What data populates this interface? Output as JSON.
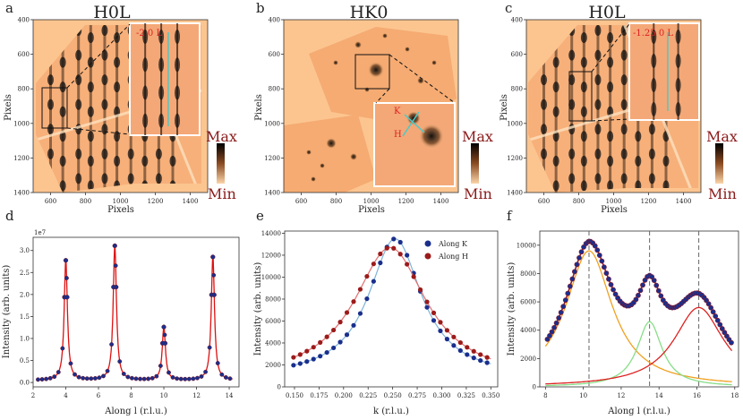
{
  "chart_data": [
    {
      "panel": "a",
      "type": "heatmap",
      "title": "H0L",
      "xlabel": "Pixels",
      "ylabel": "Pixels",
      "xticks": [
        "600",
        "800",
        "1000",
        "1200",
        "1400"
      ],
      "yticks": [
        "400",
        "600",
        "800",
        "1000",
        "1200",
        "1400"
      ],
      "inset_label": "-2 0 L",
      "colorbar": {
        "max_label": "Max",
        "min_label": "Min"
      }
    },
    {
      "panel": "b",
      "type": "heatmap",
      "title": "HK0",
      "xlabel": "Pixels",
      "ylabel": "Pixels",
      "xticks": [
        "600",
        "800",
        "1000",
        "1200",
        "1400"
      ],
      "yticks": [
        "400",
        "600",
        "800",
        "1000",
        "1200",
        "1400"
      ],
      "inset_labels": [
        "K",
        "H"
      ],
      "colorbar": {
        "max_label": "Max",
        "min_label": "Min"
      }
    },
    {
      "panel": "c",
      "type": "heatmap",
      "title": "H0L",
      "xlabel": "Pixels",
      "ylabel": "Pixels",
      "xticks": [
        "600",
        "800",
        "1000",
        "1200",
        "1400"
      ],
      "yticks": [
        "400",
        "600",
        "800",
        "1000",
        "1200",
        "1400"
      ],
      "inset_label": "-1.25 0 L",
      "colorbar": {
        "max_label": "Max",
        "min_label": "Min"
      }
    },
    {
      "panel": "d",
      "type": "scatter",
      "xlabel": "Along l (r.l.u.)",
      "ylabel": "Intensity (arb. units)",
      "scale_label": "1e7",
      "xlim": [
        2,
        14.6
      ],
      "ylim": [
        -0.1,
        3.3
      ],
      "xticks": [
        2,
        4,
        6,
        8,
        10,
        12,
        14
      ],
      "yticks": [
        0.0,
        0.5,
        1.0,
        1.5,
        2.0,
        2.5,
        3.0
      ],
      "peaks": [
        {
          "center": 4.0,
          "height": 2.72
        },
        {
          "center": 7.0,
          "height": 3.05
        },
        {
          "center": 10.0,
          "height": 1.2
        },
        {
          "center": 13.0,
          "height": 2.8
        }
      ],
      "baseline": 0.05
    },
    {
      "panel": "e",
      "type": "scatter",
      "xlabel": "k (r.l.u.)",
      "ylabel": "Intensity (arb. units)",
      "xlim": [
        0.14,
        0.357
      ],
      "ylim": [
        0,
        14200
      ],
      "xticks": [
        "0.150",
        "0.175",
        "0.200",
        "0.225",
        "0.250",
        "0.275",
        "0.300",
        "0.325",
        "0.350"
      ],
      "yticks": [
        0,
        2000,
        4000,
        6000,
        8000,
        10000,
        12000,
        14000
      ],
      "series": [
        {
          "name": "Along K",
          "color": "#1a2f8c",
          "center": 0.2525,
          "amplitude": 12700,
          "width": 0.033,
          "offset": 800
        },
        {
          "name": "Along H",
          "color": "#9b1b1b",
          "center": 0.2475,
          "amplitude": 12100,
          "width": 0.045,
          "offset": 600
        }
      ]
    },
    {
      "panel": "f",
      "type": "scatter",
      "xlabel": "Along l (r.l.u.)",
      "ylabel": "Intensity (arb. units)",
      "xlim": [
        7.7,
        18.2
      ],
      "ylim": [
        0,
        11000
      ],
      "xticks": [
        8,
        10,
        12,
        14,
        16,
        18
      ],
      "yticks": [
        0,
        2000,
        4000,
        6000,
        8000,
        10000
      ],
      "dashed_lines_x": [
        10.3,
        13.5,
        16.1
      ],
      "components": [
        {
          "center": 10.3,
          "amplitude": 9600,
          "width": 1.5,
          "color": "#f0a020"
        },
        {
          "center": 13.5,
          "amplitude": 4600,
          "width": 0.8,
          "color": "#88dd88"
        },
        {
          "center": 16.1,
          "amplitude": 5600,
          "width": 1.6,
          "color": "#dd2222"
        }
      ]
    }
  ],
  "panel_letters": [
    "a",
    "b",
    "c",
    "d",
    "e",
    "f"
  ]
}
